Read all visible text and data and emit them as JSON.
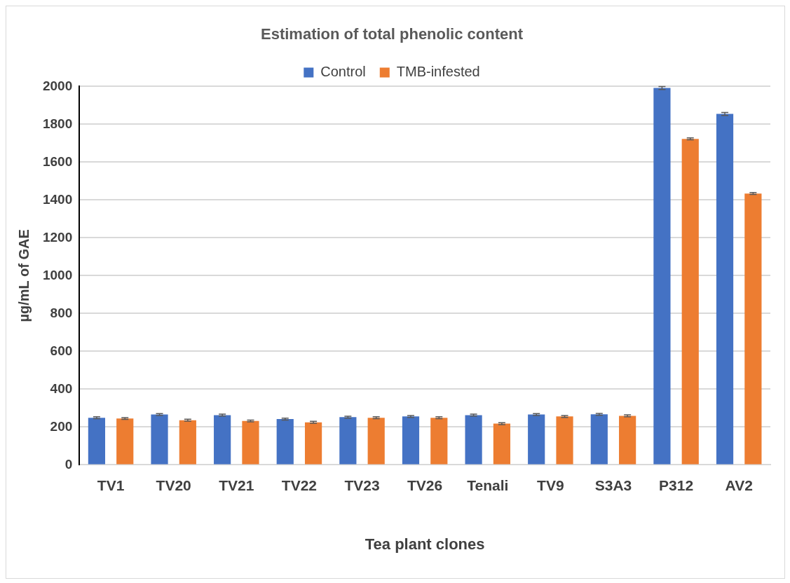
{
  "chart_data": {
    "type": "bar",
    "title": "Estimation of total phenolic content",
    "xlabel": "Tea plant clones",
    "ylabel": "µg/mL of GAE",
    "categories": [
      "TV1",
      "TV20",
      "TV21",
      "TV22",
      "TV23",
      "TV26",
      "Tenali",
      "TV9",
      "S3A3",
      "P312",
      "AV2"
    ],
    "series": [
      {
        "name": "Control",
        "color": "#4472c4",
        "values": [
          249,
          266,
          263,
          242,
          252,
          256,
          263,
          266,
          267,
          1992,
          1855
        ],
        "errors": [
          5,
          5,
          5,
          5,
          5,
          5,
          5,
          5,
          5,
          8,
          8
        ]
      },
      {
        "name": "TMB-infested",
        "color": "#ed7d31",
        "values": [
          245,
          236,
          232,
          225,
          249,
          249,
          218,
          256,
          259,
          1723,
          1434
        ],
        "errors": [
          5,
          5,
          5,
          5,
          5,
          5,
          5,
          5,
          5,
          5,
          5
        ]
      }
    ],
    "ylim": [
      0,
      2000
    ],
    "yticks": [
      0,
      200,
      400,
      600,
      800,
      1000,
      1200,
      1400,
      1600,
      1800,
      2000
    ],
    "grid": "y",
    "legend": "top"
  }
}
